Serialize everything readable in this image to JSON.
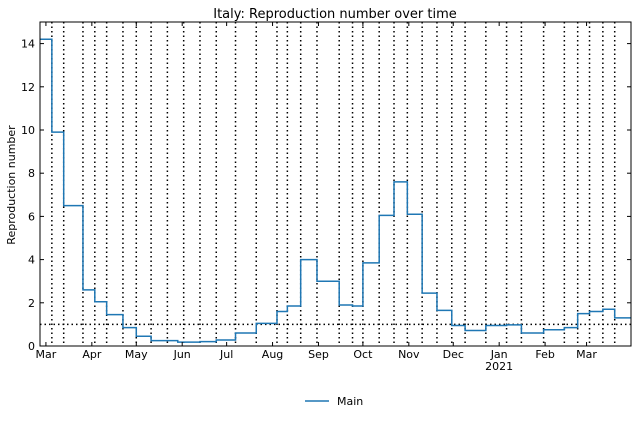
{
  "chart_data": {
    "type": "line",
    "title": "Italy: Reproduction number over time",
    "xlabel": "",
    "ylabel": "Reproduction number",
    "xlim": [
      "2020-02-26",
      "2021-03-31"
    ],
    "ylim": [
      0,
      15
    ],
    "yticks": [
      0,
      2,
      4,
      6,
      8,
      10,
      12,
      14
    ],
    "xticks": [
      {
        "date": "2020-03-01",
        "label": "Mar",
        "label2": ""
      },
      {
        "date": "2020-04-01",
        "label": "Apr",
        "label2": ""
      },
      {
        "date": "2020-05-01",
        "label": "May",
        "label2": ""
      },
      {
        "date": "2020-06-01",
        "label": "Jun",
        "label2": ""
      },
      {
        "date": "2020-07-01",
        "label": "Jul",
        "label2": ""
      },
      {
        "date": "2020-08-01",
        "label": "Aug",
        "label2": ""
      },
      {
        "date": "2020-09-01",
        "label": "Sep",
        "label2": ""
      },
      {
        "date": "2020-10-01",
        "label": "Oct",
        "label2": ""
      },
      {
        "date": "2020-11-01",
        "label": "Nov",
        "label2": ""
      },
      {
        "date": "2020-12-01",
        "label": "Dec",
        "label2": ""
      },
      {
        "date": "2021-01-01",
        "label": "Jan",
        "label2": "2021"
      },
      {
        "date": "2021-02-01",
        "label": "Feb",
        "label2": ""
      },
      {
        "date": "2021-03-01",
        "label": "Mar",
        "label2": ""
      }
    ],
    "reference_line": {
      "y": 1,
      "style": "dotted"
    },
    "change_points": [
      "2020-03-05",
      "2020-03-13",
      "2020-03-26",
      "2020-04-03",
      "2020-04-11",
      "2020-04-22",
      "2020-05-01",
      "2020-05-11",
      "2020-05-22",
      "2020-06-02",
      "2020-06-13",
      "2020-06-24",
      "2020-07-07",
      "2020-07-21",
      "2020-08-04",
      "2020-08-11",
      "2020-08-20",
      "2020-08-31",
      "2020-09-15",
      "2020-09-24",
      "2020-10-01",
      "2020-10-12",
      "2020-10-22",
      "2020-10-31",
      "2020-11-10",
      "2020-11-20",
      "2020-11-30",
      "2020-12-09",
      "2020-12-23",
      "2021-01-06",
      "2021-01-16",
      "2021-01-31",
      "2021-02-14",
      "2021-02-23",
      "2021-03-03",
      "2021-03-12",
      "2021-03-20"
    ],
    "series": [
      {
        "name": "Main",
        "color": "#1f77b4",
        "step": true,
        "points": [
          {
            "x": "2020-02-26",
            "y": 14.2
          },
          {
            "x": "2020-03-05",
            "y": 9.9
          },
          {
            "x": "2020-03-13",
            "y": 6.5
          },
          {
            "x": "2020-03-26",
            "y": 2.6
          },
          {
            "x": "2020-04-03",
            "y": 2.05
          },
          {
            "x": "2020-04-11",
            "y": 1.45
          },
          {
            "x": "2020-04-22",
            "y": 0.85
          },
          {
            "x": "2020-05-01",
            "y": 0.45
          },
          {
            "x": "2020-05-11",
            "y": 0.25
          },
          {
            "x": "2020-05-22",
            "y": 0.25
          },
          {
            "x": "2020-05-29",
            "y": 0.18
          },
          {
            "x": "2020-06-13",
            "y": 0.2
          },
          {
            "x": "2020-06-24",
            "y": 0.28
          },
          {
            "x": "2020-07-07",
            "y": 0.6
          },
          {
            "x": "2020-07-21",
            "y": 1.05
          },
          {
            "x": "2020-08-04",
            "y": 1.6
          },
          {
            "x": "2020-08-11",
            "y": 1.85
          },
          {
            "x": "2020-08-20",
            "y": 4.0
          },
          {
            "x": "2020-08-31",
            "y": 3.0
          },
          {
            "x": "2020-09-15",
            "y": 1.9
          },
          {
            "x": "2020-09-24",
            "y": 1.85
          },
          {
            "x": "2020-10-01",
            "y": 3.85
          },
          {
            "x": "2020-10-12",
            "y": 6.05
          },
          {
            "x": "2020-10-22",
            "y": 7.6
          },
          {
            "x": "2020-10-31",
            "y": 6.1
          },
          {
            "x": "2020-11-10",
            "y": 2.45
          },
          {
            "x": "2020-11-20",
            "y": 1.65
          },
          {
            "x": "2020-11-30",
            "y": 0.95
          },
          {
            "x": "2020-12-09",
            "y": 0.72
          },
          {
            "x": "2020-12-23",
            "y": 0.95
          },
          {
            "x": "2021-01-06",
            "y": 0.98
          },
          {
            "x": "2021-01-16",
            "y": 0.6
          },
          {
            "x": "2021-01-31",
            "y": 0.75
          },
          {
            "x": "2021-02-14",
            "y": 0.85
          },
          {
            "x": "2021-02-23",
            "y": 1.5
          },
          {
            "x": "2021-03-03",
            "y": 1.6
          },
          {
            "x": "2021-03-12",
            "y": 1.7
          },
          {
            "x": "2021-03-20",
            "y": 1.3
          },
          {
            "x": "2021-03-31",
            "y": 1.3
          }
        ]
      }
    ],
    "legend": {
      "placement": "bottom-center",
      "entries": [
        "Main"
      ]
    },
    "grid": false
  }
}
